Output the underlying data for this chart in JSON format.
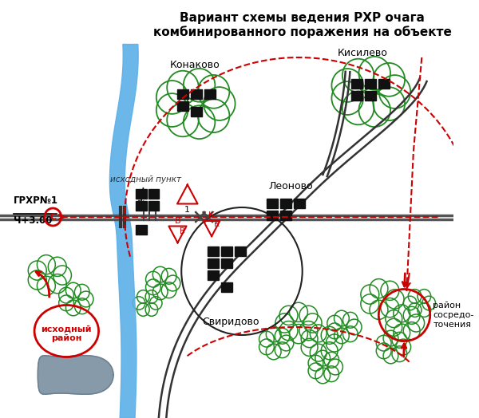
{
  "title_line1": "Вариант схемы ведения РХР очага",
  "title_line2": "комбинированного поражения на объекте",
  "bg_color": "#ffffff",
  "tree_color": "#228B22",
  "river_color": "#5BB0E8",
  "red_color": "#CC0000",
  "road_color": "#555555",
  "water_body_color": "#7A8FA0",
  "label_konakovo": "Конаково",
  "label_kisilyevo": "Кисилево",
  "label_leonovo": "Леоново",
  "label_sviridovo": "Свиридово",
  "label_grxp": "ГРХР№1",
  "label_grxp2": "Ч+3.00",
  "label_iskhodny_punkt": "исходный пункт",
  "label_iskhodny_rayon": "исходный\nрайон",
  "label_rayon_sosr": "район\nсосредо-\nточения"
}
